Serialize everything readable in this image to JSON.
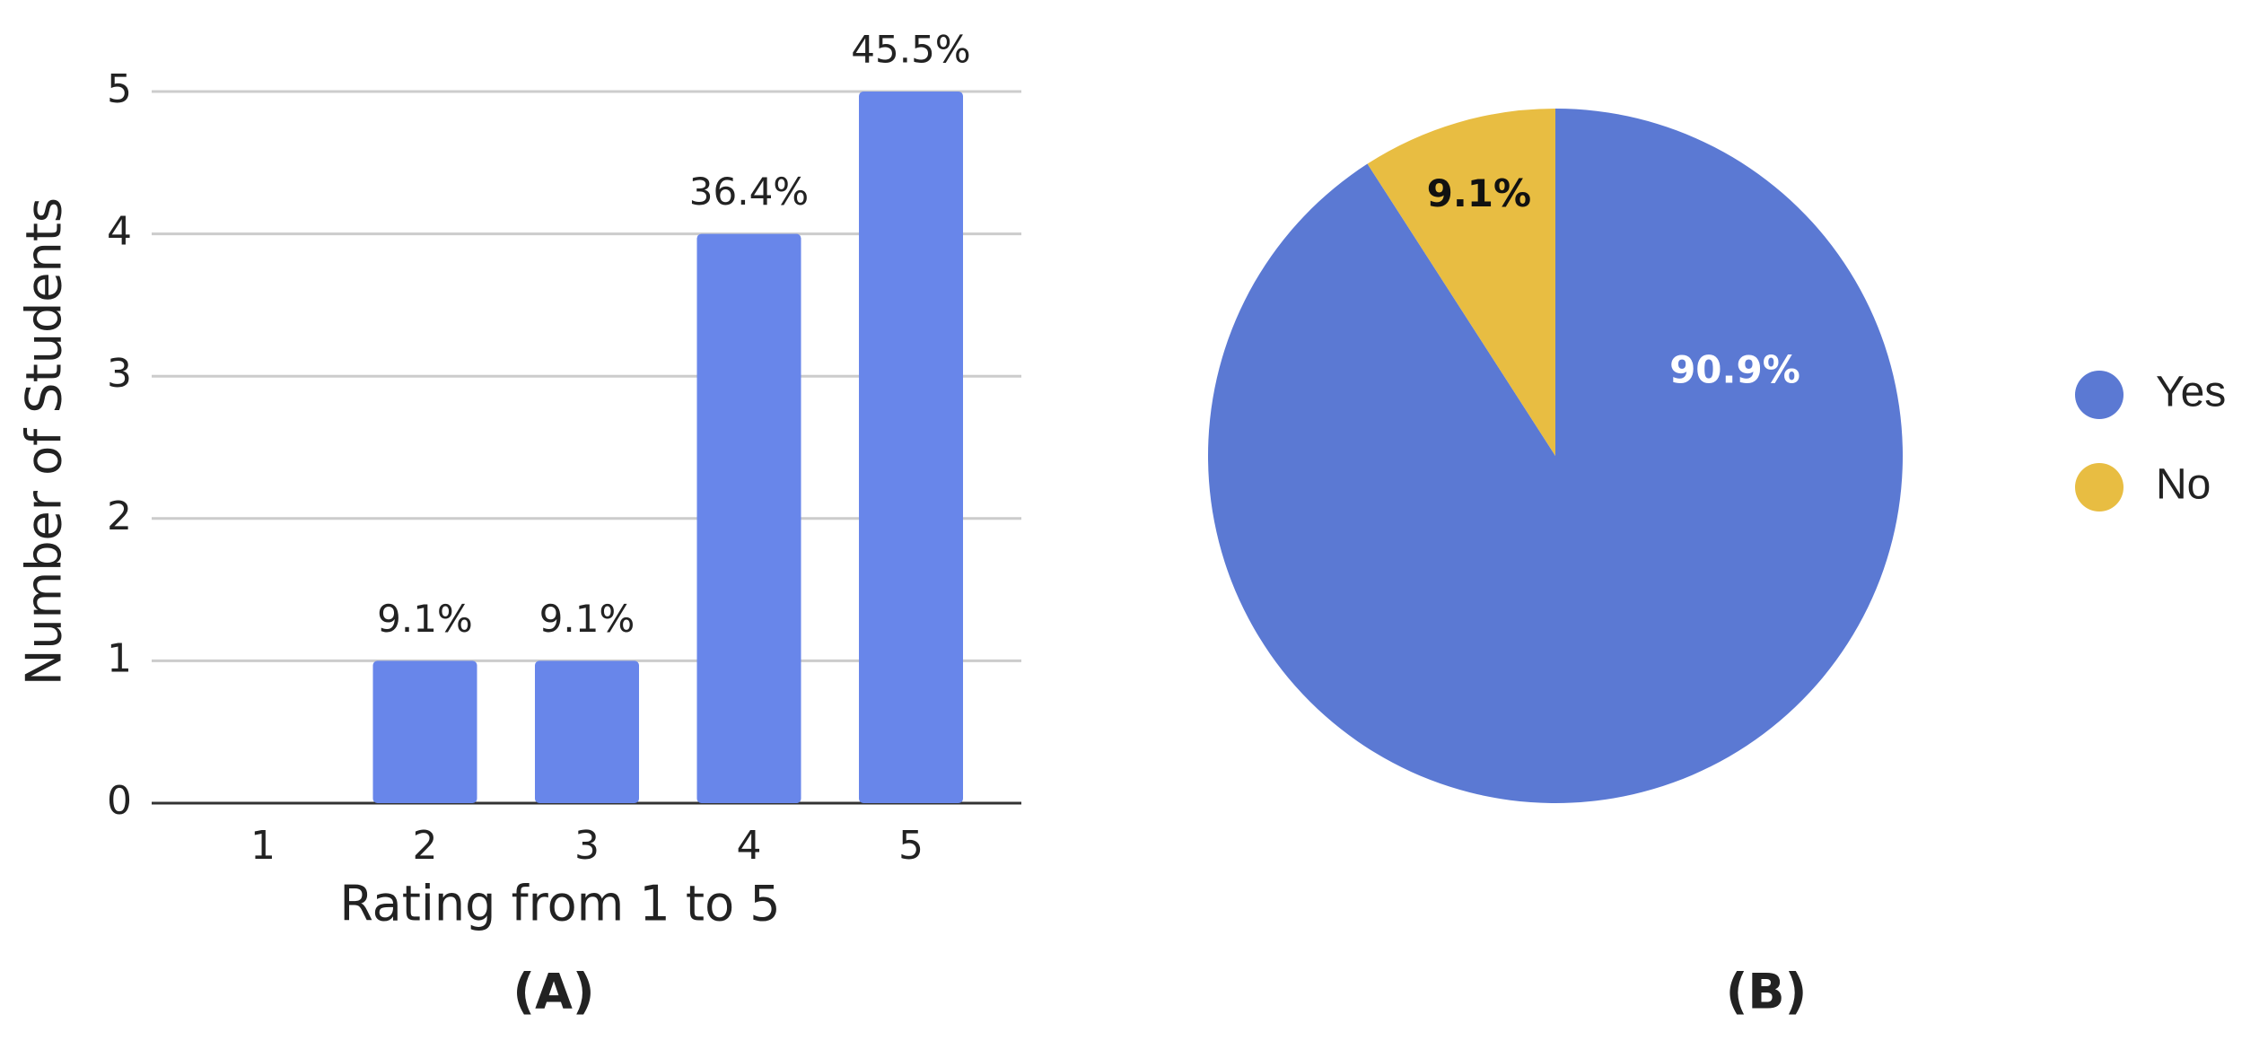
{
  "chart_data": [
    {
      "type": "bar",
      "caption": "(A)",
      "x_label": "Rating from 1 to 5",
      "y_label": "Number of Students",
      "categories": [
        "1",
        "2",
        "3",
        "4",
        "5"
      ],
      "values": [
        0,
        1,
        1,
        4,
        5
      ],
      "annotations": [
        null,
        "9.1%",
        "9.1%",
        "36.4%",
        "45.5%"
      ],
      "color": "#6886ea",
      "ylim": [
        0,
        5
      ],
      "yticks": [
        0,
        1,
        2,
        3,
        4,
        5
      ],
      "grid": true
    },
    {
      "type": "pie",
      "caption": "(B)",
      "categories": [
        "Yes",
        "No"
      ],
      "values": [
        90.9,
        9.1
      ],
      "value_labels": [
        "90.9%",
        "9.1%"
      ],
      "colors": [
        "#5b79d3",
        "#e8bd42"
      ],
      "legend": "right"
    }
  ]
}
